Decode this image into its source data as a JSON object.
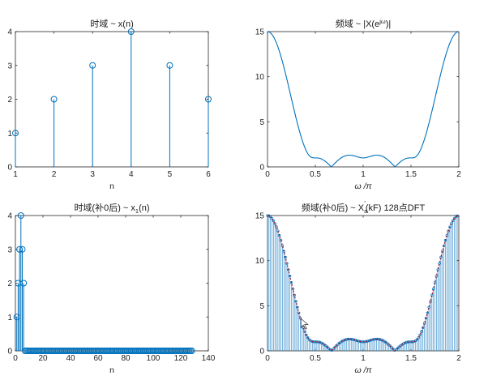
{
  "colors": {
    "stem": "#0072BD",
    "marker": "#0072BD",
    "dashed": "#A2142F",
    "axes": "#262626"
  },
  "chart_data": [
    {
      "id": "tl",
      "type": "stem",
      "title": "时域 ~ x(n)",
      "xlabel": "n",
      "ylabel": "",
      "xlim": [
        1,
        6
      ],
      "ylim": [
        0,
        4
      ],
      "xticks": [
        1,
        2,
        3,
        4,
        5,
        6
      ],
      "yticks": [
        0,
        1,
        2,
        3,
        4
      ],
      "grid": false,
      "x": [
        1,
        2,
        3,
        4,
        5,
        6
      ],
      "y": [
        1,
        2,
        3,
        4,
        3,
        2
      ]
    },
    {
      "id": "tr",
      "type": "line",
      "title": "频域 ~ |X(e",
      "title_sup": "jω",
      "title_end": ")|",
      "xlabel": "ω /π",
      "ylabel": "",
      "xlim": [
        0,
        2
      ],
      "ylim": [
        0,
        15
      ],
      "xticks": [
        "0",
        "0.5",
        "1",
        "1.5",
        "2"
      ],
      "yticks": [
        0,
        5,
        10,
        15
      ],
      "grid": false,
      "series": [
        {
          "function": "|Σ_{n=1..6} x(n)·e^{-jωn}|, x = [1,2,3,4,3,2], ω from 0 to 2π"
        }
      ]
    },
    {
      "id": "bl",
      "type": "stem",
      "title": "时域(补0后) ~ x",
      "title_sub": "1",
      "title_end": "(n)",
      "xlabel": "n",
      "ylabel": "",
      "xlim": [
        0,
        140
      ],
      "ylim": [
        0,
        4
      ],
      "xticks": [
        0,
        20,
        40,
        60,
        80,
        100,
        120,
        140
      ],
      "yticks": [
        0,
        1,
        2,
        3,
        4
      ],
      "grid": false,
      "x_range": [
        1,
        128
      ],
      "nonzero": [
        {
          "n": 1,
          "y": 1
        },
        {
          "n": 2,
          "y": 2
        },
        {
          "n": 3,
          "y": 3
        },
        {
          "n": 4,
          "y": 4
        },
        {
          "n": 5,
          "y": 3
        },
        {
          "n": 6,
          "y": 2
        }
      ],
      "zero_fill_value": 0
    },
    {
      "id": "br",
      "type": "stem",
      "title": "频域(补0后) ~ X",
      "title_sub": "a",
      "title_sup": "'",
      "title_end": "(kF) 128点DFT",
      "xlabel": "ω /π",
      "ylabel": "",
      "xlim": [
        0,
        2
      ],
      "ylim": [
        0,
        15
      ],
      "xticks": [
        "0",
        "0.5",
        "1",
        "1.5",
        "2"
      ],
      "yticks": [
        0,
        5,
        10,
        15
      ],
      "grid": false,
      "dft_points": 128,
      "series": [
        {
          "style": "stem",
          "function": "|X(e^{jω})| sampled at ω = 2πk/128, k = 0..127"
        },
        {
          "style": "dashed",
          "function": "|X(e^{jω})| continuous"
        }
      ]
    }
  ]
}
